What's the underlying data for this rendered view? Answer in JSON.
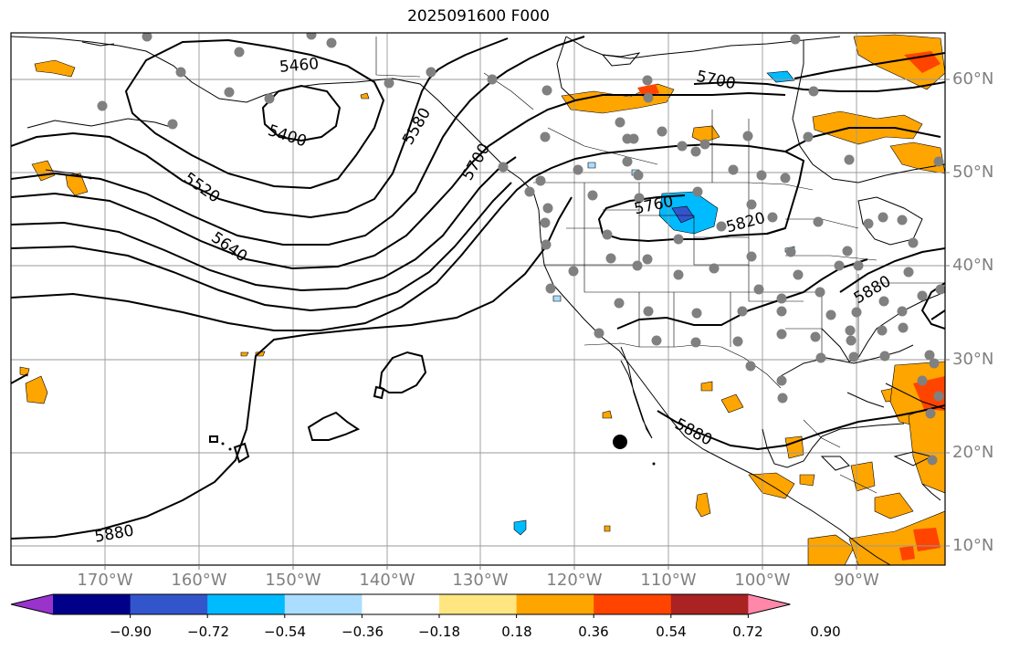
{
  "title": "2025091600 F000",
  "lat_labels": [
    "60°N",
    "50°N",
    "40°N",
    "30°N",
    "20°N",
    "10°N"
  ],
  "lon_labels": [
    "170°W",
    "160°W",
    "150°W",
    "140°W",
    "130°W",
    "120°W",
    "110°W",
    "100°W",
    "90°W"
  ],
  "contour_labels": [
    "5460",
    "5400",
    "5520",
    "5640",
    "5580",
    "5700",
    "5760",
    "5820",
    "5880",
    "5880",
    "5880",
    "5700"
  ],
  "colorbar": {
    "ticks": [
      "−0.90",
      "−0.72",
      "−0.54",
      "−0.36",
      "−0.18",
      "0.18",
      "0.36",
      "0.54",
      "0.72",
      "0.90"
    ],
    "colors": [
      "#9933cc",
      "#000088",
      "#3355cc",
      "#00bbff",
      "#aaddff",
      "#ffffff",
      "#ffe680",
      "#ffa500",
      "#ff4400",
      "#aa2222",
      "#ff88aa"
    ]
  },
  "fill_colors": {
    "orange": "#ffa500",
    "red": "#ff4400",
    "cyan": "#00bbff",
    "blue": "#3355cc",
    "station": "#808080"
  }
}
